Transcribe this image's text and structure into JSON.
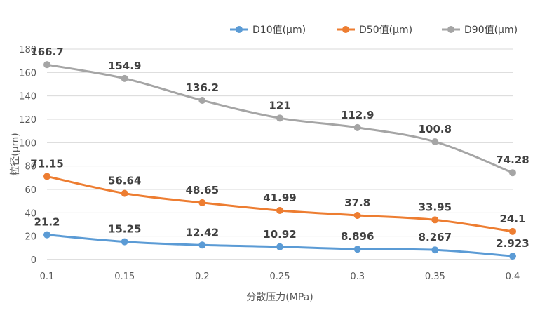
{
  "chart_data": {
    "type": "line",
    "title": "",
    "xlabel": "分散压力(MPa)",
    "ylabel": "粒径(μm)",
    "x": [
      "0.1",
      "0.15",
      "0.2",
      "0.25",
      "0.3",
      "0.35",
      "0.4"
    ],
    "ylim": [
      0,
      180
    ],
    "yticks": [
      "0",
      "20",
      "40",
      "60",
      "80",
      "100",
      "120",
      "140",
      "160",
      "180"
    ],
    "grid": true,
    "legend_position": "top-right",
    "series": [
      {
        "name": "D10值(μm)",
        "color": "#5b9bd5",
        "values": [
          21.2,
          15.25,
          12.42,
          10.92,
          8.896,
          8.267,
          2.923
        ],
        "labels": [
          "21.2",
          "15.25",
          "12.42",
          "10.92",
          "8.896",
          "8.267",
          "2.923"
        ]
      },
      {
        "name": "D50值(μm)",
        "color": "#ed7d31",
        "values": [
          71.15,
          56.64,
          48.65,
          41.99,
          37.8,
          33.95,
          24.1
        ],
        "labels": [
          "71.15",
          "56.64",
          "48.65",
          "41.99",
          "37.8",
          "33.95",
          "24.1"
        ]
      },
      {
        "name": "D90值(μm)",
        "color": "#a5a5a5",
        "values": [
          166.7,
          154.9,
          136.2,
          121,
          112.9,
          100.8,
          74.28
        ],
        "labels": [
          "166.7",
          "154.9",
          "136.2",
          "121",
          "112.9",
          "100.8",
          "74.28"
        ]
      }
    ]
  }
}
